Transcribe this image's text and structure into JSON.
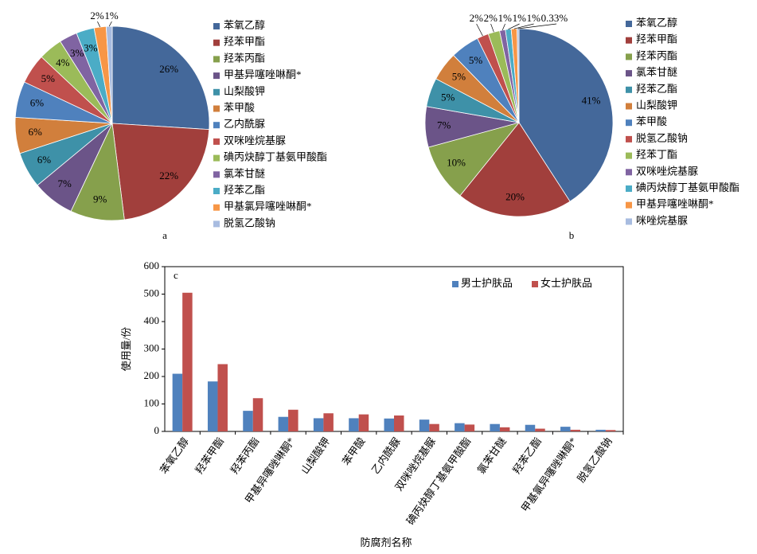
{
  "chart_data": [
    {
      "type": "pie",
      "label": "a",
      "categories": [
        "苯氧乙醇",
        "羟苯甲酯",
        "羟苯丙酯",
        "甲基异噻唑啉酮*",
        "山梨酸钾",
        "苯甲酸",
        "乙内酰脲",
        "双咪唑烷基脲",
        "碘丙炔醇丁基氨甲酸酯",
        "氯苯甘醚",
        "羟苯乙酯",
        "甲基氯异噻唑啉酮*",
        "脱氢乙酸钠"
      ],
      "values": [
        26,
        22,
        9,
        7,
        6,
        6,
        6,
        5,
        4,
        3,
        3,
        2,
        1
      ],
      "value_labels": [
        "26%",
        "22%",
        "9%",
        "7%",
        "6%",
        "6%",
        "6%",
        "5%",
        "4%",
        "3%",
        "3%",
        "2%",
        "1%"
      ],
      "colors": [
        "#44689a",
        "#a13f3c",
        "#86a04c",
        "#6b5488",
        "#3e91a8",
        "#d17f3c",
        "#4f81bd",
        "#c0504d",
        "#9bbb59",
        "#8064a2",
        "#4bacc6",
        "#f79646",
        "#a8bce0"
      ]
    },
    {
      "type": "pie",
      "label": "b",
      "categories": [
        "苯氧乙醇",
        "羟苯甲酯",
        "羟苯丙酯",
        "氯苯甘醚",
        "羟苯乙酯",
        "山梨酸钾",
        "苯甲酸",
        "脱氢乙酸钠",
        "羟苯丁酯",
        "双咪唑烷基脲",
        "碘丙炔醇丁基氨甲酸酯",
        "甲基异噻唑啉酮*",
        "咪唑烷基脲"
      ],
      "values": [
        41,
        20,
        10,
        7,
        5,
        5,
        5,
        2,
        2,
        1,
        1,
        1,
        0.33
      ],
      "value_labels": [
        "41%",
        "20%",
        "10%",
        "7%",
        "5%",
        "5%",
        "5%",
        "2%",
        "2%",
        "1%",
        "1%",
        "1%",
        "0.33%"
      ],
      "colors": [
        "#44689a",
        "#a13f3c",
        "#86a04c",
        "#6b5488",
        "#3e91a8",
        "#d17f3c",
        "#4f81bd",
        "#c0504d",
        "#9bbb59",
        "#8064a2",
        "#4bacc6",
        "#f79646",
        "#a8bce0"
      ]
    },
    {
      "type": "bar",
      "label": "c",
      "categories": [
        "苯氧乙醇",
        "羟苯甲酯",
        "羟苯丙酯",
        "甲基异噻唑啉酮*",
        "山梨酸钾",
        "苯甲酸",
        "乙内酰脲",
        "双咪唑烷基脲",
        "碘丙炔醇丁基氨甲酸酯",
        "氯苯甘醚",
        "羟苯乙酯",
        "甲基氯异噻唑啉酮*",
        "脱氢乙酸钠"
      ],
      "series": [
        {
          "name": "男士护肤品",
          "color": "#4f81bd",
          "values": [
            210,
            182,
            75,
            53,
            48,
            48,
            47,
            43,
            30,
            27,
            24,
            17,
            6
          ]
        },
        {
          "name": "女士护肤品",
          "color": "#c0504d",
          "values": [
            505,
            245,
            121,
            79,
            66,
            62,
            58,
            27,
            25,
            15,
            10,
            6,
            5
          ]
        }
      ],
      "xlabel": "防腐剂名称",
      "ylabel": "使用量/份",
      "ylim": [
        0,
        600
      ],
      "yticks": [
        0,
        100,
        200,
        300,
        400,
        500,
        600
      ],
      "legend": "upper right"
    }
  ]
}
